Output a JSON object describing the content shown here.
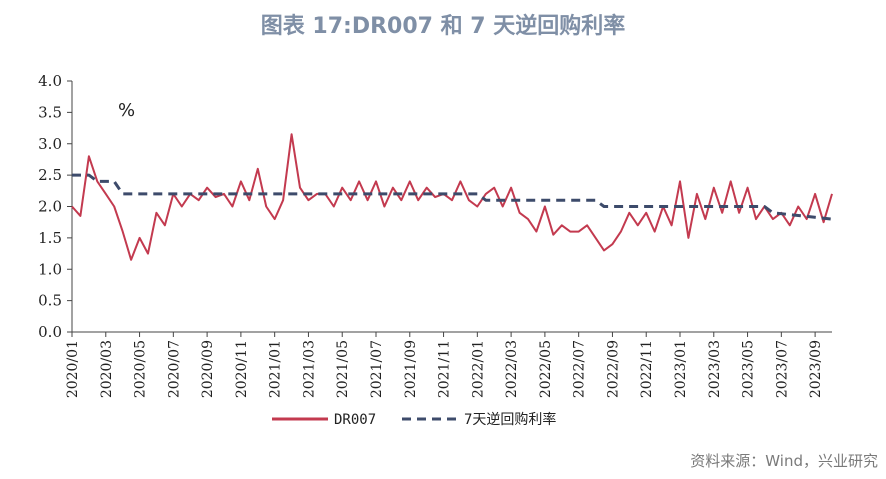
{
  "title": "图表 17:DR007 和 7 天逆回购利率",
  "source": "资料来源：Wind，兴业研究",
  "chart_data": {
    "type": "line",
    "title": "图表 17:DR007 和 7 天逆回购利率",
    "unit_label": "%",
    "ylim": [
      0.0,
      4.0
    ],
    "yticks": [
      "0.0",
      "0.5",
      "1.0",
      "1.5",
      "2.0",
      "2.5",
      "3.0",
      "3.5",
      "4.0"
    ],
    "xlim": [
      "2020-01",
      "2023-10"
    ],
    "xticks": [
      "2020/01",
      "2020/03",
      "2020/05",
      "2020/07",
      "2020/09",
      "2020/11",
      "2021/01",
      "2021/03",
      "2021/05",
      "2021/07",
      "2021/09",
      "2021/11",
      "2022/01",
      "2022/03",
      "2022/05",
      "2022/07",
      "2022/09",
      "2022/11",
      "2023/01",
      "2023/03",
      "2023/05",
      "2023/07",
      "2023/09"
    ],
    "legend_position": "bottom",
    "grid": false,
    "colors": {
      "dr007": "#c33a4f",
      "reverse_repo": "#3d4b6b"
    },
    "series": [
      {
        "name": "DR007",
        "style": "solid",
        "x": [
          "2020-01",
          "2020-01",
          "2020-02",
          "2020-02",
          "2020-03",
          "2020-03",
          "2020-04",
          "2020-04",
          "2020-05",
          "2020-05",
          "2020-06",
          "2020-06",
          "2020-07",
          "2020-07",
          "2020-08",
          "2020-08",
          "2020-09",
          "2020-09",
          "2020-10",
          "2020-10",
          "2020-11",
          "2020-11",
          "2020-12",
          "2020-12",
          "2021-01",
          "2021-01",
          "2021-02",
          "2021-02",
          "2021-03",
          "2021-03",
          "2021-04",
          "2021-04",
          "2021-05",
          "2021-05",
          "2021-06",
          "2021-06",
          "2021-07",
          "2021-07",
          "2021-08",
          "2021-08",
          "2021-09",
          "2021-09",
          "2021-10",
          "2021-10",
          "2021-11",
          "2021-11",
          "2021-12",
          "2021-12",
          "2022-01",
          "2022-01",
          "2022-02",
          "2022-02",
          "2022-03",
          "2022-03",
          "2022-04",
          "2022-04",
          "2022-05",
          "2022-05",
          "2022-06",
          "2022-06",
          "2022-07",
          "2022-07",
          "2022-08",
          "2022-08",
          "2022-09",
          "2022-09",
          "2022-10",
          "2022-10",
          "2022-11",
          "2022-11",
          "2022-12",
          "2022-12",
          "2023-01",
          "2023-01",
          "2023-02",
          "2023-02",
          "2023-03",
          "2023-03",
          "2023-04",
          "2023-04",
          "2023-05",
          "2023-05",
          "2023-06",
          "2023-06",
          "2023-07",
          "2023-07",
          "2023-08",
          "2023-08",
          "2023-09",
          "2023-09",
          "2023-10"
        ],
        "values": [
          2.0,
          1.85,
          2.8,
          2.4,
          2.2,
          2.0,
          1.6,
          1.15,
          1.5,
          1.25,
          1.9,
          1.7,
          2.2,
          2.0,
          2.2,
          2.1,
          2.3,
          2.15,
          2.2,
          2.0,
          2.4,
          2.1,
          2.6,
          2.0,
          1.8,
          2.1,
          3.15,
          2.3,
          2.1,
          2.2,
          2.2,
          2.0,
          2.3,
          2.1,
          2.4,
          2.1,
          2.4,
          2.0,
          2.3,
          2.1,
          2.4,
          2.1,
          2.3,
          2.15,
          2.2,
          2.1,
          2.4,
          2.1,
          2.0,
          2.2,
          2.3,
          2.0,
          2.3,
          1.9,
          1.8,
          1.6,
          2.0,
          1.55,
          1.7,
          1.6,
          1.6,
          1.7,
          1.5,
          1.3,
          1.4,
          1.6,
          1.9,
          1.7,
          1.9,
          1.6,
          2.0,
          1.7,
          2.4,
          1.5,
          2.2,
          1.8,
          2.3,
          1.9,
          2.4,
          1.9,
          2.3,
          1.8,
          2.0,
          1.8,
          1.9,
          1.7,
          2.0,
          1.8,
          2.2,
          1.75,
          2.2
        ]
      },
      {
        "name": "7天逆回购利率",
        "style": "dashed",
        "x": [
          "2020-01",
          "2020-02",
          "2020-02",
          "2020-03",
          "2020-03",
          "2020-04",
          "2020-04",
          "2022-01",
          "2022-01",
          "2022-08",
          "2022-08",
          "2023-06",
          "2023-06",
          "2023-10"
        ],
        "values": [
          2.5,
          2.5,
          2.4,
          2.4,
          2.4,
          2.2,
          2.2,
          2.2,
          2.1,
          2.1,
          2.0,
          2.0,
          1.9,
          1.8
        ]
      }
    ]
  }
}
